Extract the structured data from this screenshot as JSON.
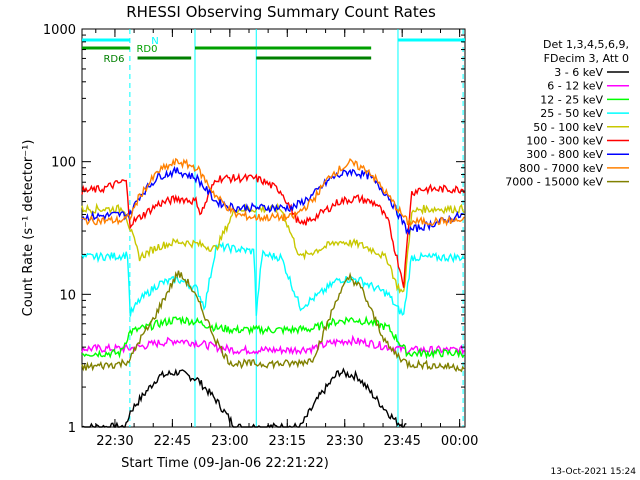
{
  "chart_data": {
    "type": "line",
    "title": "RHESSI Observing Summary Count Rates",
    "xlabel": "Start Time (09-Jan-06 22:21:22)",
    "ylabel": "Count Rate (s⁻¹ detector⁻¹)",
    "yscale": "log",
    "ylim": [
      1,
      1000
    ],
    "xlim_minutes": [
      0,
      100
    ],
    "x_tick_labels": [
      "22:30",
      "22:45",
      "23:00",
      "23:15",
      "23:30",
      "23:45",
      "00:00"
    ],
    "x_tick_minutes": [
      8.6,
      23.6,
      38.6,
      53.6,
      68.6,
      83.6,
      98.6
    ],
    "y_tick_labels": [
      "1",
      "10",
      "100",
      "1000"
    ],
    "y_tick_values": [
      1,
      10,
      100,
      1000
    ],
    "grid": false,
    "legend_header": [
      "Det 1,3,4,5,6,9,",
      "FDecim 3, Att 0"
    ],
    "legend_placement": "right",
    "flags": [
      {
        "name": "N",
        "color": "#00ffff",
        "segments": [
          [
            0,
            12.5
          ],
          [
            82.5,
            100
          ]
        ]
      },
      {
        "name": "RD0",
        "color": "#00a000",
        "segments": [
          [
            0,
            12.5
          ],
          [
            29.5,
            45.5
          ],
          [
            45.5,
            75.5
          ]
        ]
      },
      {
        "name": "RD6",
        "color": "#008000",
        "segments": [
          [
            14.5,
            28.5
          ],
          [
            45.5,
            75.5
          ]
        ]
      }
    ],
    "night_boundaries_minutes": [
      12.5,
      82.5,
      99.5
    ],
    "saa_boundaries_minutes": [
      29.5,
      45.5
    ],
    "series": [
      {
        "name": "3 - 6 keV",
        "color": "#000000",
        "x": [
          0,
          11.5,
          12.5,
          15,
          20,
          25,
          30,
          35,
          40,
          45,
          47,
          52,
          57,
          62,
          67,
          72,
          77,
          82,
          85
        ],
        "y": [
          1,
          1,
          1.3,
          1.6,
          2.4,
          2.6,
          2.3,
          1.6,
          1.0,
          1.0,
          1,
          1,
          1,
          1.7,
          2.6,
          2.4,
          1.6,
          1.1,
          1
        ]
      },
      {
        "name": "6 - 12 keV",
        "color": "#ff00ff",
        "x": [
          0,
          10,
          12.5,
          20,
          25,
          30,
          35,
          40,
          45,
          50,
          55,
          60,
          65,
          70,
          75,
          80,
          85,
          100
        ],
        "y": [
          3.9,
          3.9,
          3.9,
          4.3,
          4.5,
          4.3,
          4.0,
          3.8,
          3.8,
          3.8,
          3.8,
          3.9,
          4.3,
          4.5,
          4.3,
          4.0,
          3.8,
          3.8
        ]
      },
      {
        "name": "12 - 25 keV",
        "color": "#00ff00",
        "x": [
          0,
          10,
          12.5,
          20,
          25,
          30,
          35,
          40,
          45,
          50,
          55,
          60,
          65,
          70,
          75,
          80,
          85,
          100
        ],
        "y": [
          3.6,
          3.6,
          5.2,
          6.0,
          6.5,
          6.2,
          5.6,
          5.4,
          5.4,
          5.4,
          5.4,
          5.5,
          6.1,
          6.5,
          6.2,
          5.6,
          3.6,
          3.6
        ]
      },
      {
        "name": "25 - 50 keV",
        "color": "#00ffff",
        "x": [
          0,
          10,
          12,
          12.5,
          15,
          20,
          25,
          30,
          32,
          35,
          40,
          45,
          45.5,
          47,
          52,
          57,
          62,
          67,
          72,
          77,
          80,
          82,
          84,
          86,
          88,
          100
        ],
        "y": [
          19,
          19.5,
          20,
          7,
          9,
          12,
          13,
          11,
          8,
          23,
          22,
          21,
          7,
          20,
          19,
          8,
          10,
          13,
          13,
          11,
          10,
          8,
          7,
          19,
          19,
          19
        ]
      },
      {
        "name": "50 - 100 keV",
        "color": "#c8c800",
        "x": [
          0,
          10,
          11,
          12,
          15,
          20,
          25,
          30,
          35,
          40,
          45,
          47,
          52,
          57,
          62,
          67,
          72,
          77,
          80,
          82,
          84,
          86,
          88,
          100
        ],
        "y": [
          44,
          44,
          45,
          35,
          19,
          23,
          25,
          24,
          22,
          44,
          44,
          44,
          44,
          19,
          22,
          25,
          24,
          21,
          18,
          12,
          10,
          40,
          44,
          44
        ]
      },
      {
        "name": "100 - 300 keV",
        "color": "#ff0000",
        "x": [
          0,
          5,
          11.5,
          12.5,
          15,
          20,
          25,
          30,
          31,
          35,
          40,
          45,
          47,
          52,
          57,
          62,
          67,
          72,
          77,
          80,
          82,
          84,
          86,
          88,
          100
        ],
        "y": [
          60,
          62,
          72,
          34,
          38,
          48,
          53,
          50,
          40,
          75,
          75,
          75,
          72,
          60,
          33,
          40,
          50,
          53,
          48,
          35,
          20,
          12,
          58,
          62,
          62
        ]
      },
      {
        "name": "300 - 800 keV",
        "color": "#0000ff",
        "x": [
          0,
          10,
          12.5,
          15,
          20,
          25,
          30,
          35,
          40,
          45,
          50,
          55,
          60,
          65,
          70,
          75,
          80,
          85,
          100
        ],
        "y": [
          38,
          40,
          40,
          55,
          78,
          85,
          75,
          50,
          45,
          45,
          45,
          45,
          55,
          75,
          85,
          78,
          55,
          30,
          40
        ]
      },
      {
        "name": "800 - 7000 keV",
        "color": "#ff8000",
        "x": [
          0,
          10,
          12.5,
          15,
          20,
          25,
          30,
          35,
          40,
          45,
          50,
          55,
          60,
          65,
          70,
          75,
          80,
          85,
          100
        ],
        "y": [
          36,
          36,
          38,
          55,
          85,
          100,
          90,
          55,
          40,
          38,
          38,
          38,
          50,
          80,
          98,
          85,
          55,
          35,
          36
        ]
      },
      {
        "name": "7000 - 15000 keV",
        "color": "#808000",
        "x": [
          0,
          10,
          12.5,
          15,
          18,
          22,
          25,
          28,
          32,
          35,
          38,
          40,
          45,
          50,
          55,
          60,
          63,
          67,
          70,
          73,
          77,
          80,
          85,
          100
        ],
        "y": [
          2.8,
          3.0,
          3.2,
          4.5,
          6,
          10,
          14.5,
          12,
          7,
          4.5,
          3.2,
          3.0,
          3.0,
          3.0,
          3.0,
          3.2,
          5,
          10,
          13.5,
          11,
          6,
          4,
          3.0,
          2.8
        ]
      }
    ]
  },
  "footer": {
    "timestamp": "13-Oct-2021 15:24"
  }
}
